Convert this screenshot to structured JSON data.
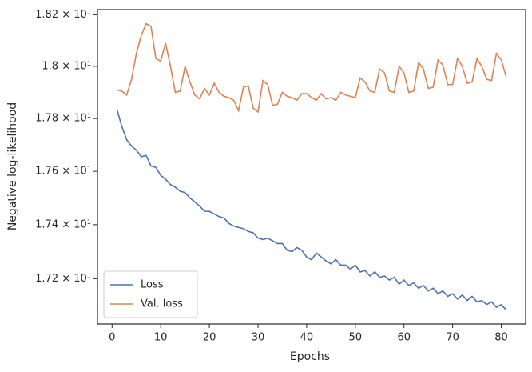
{
  "chart_data": {
    "type": "line",
    "xlabel": "Epochs",
    "ylabel": "Negative log-likelihood",
    "x": [
      1,
      2,
      3,
      4,
      5,
      6,
      7,
      8,
      9,
      10,
      11,
      12,
      13,
      14,
      15,
      16,
      17,
      18,
      19,
      20,
      21,
      22,
      23,
      24,
      25,
      26,
      27,
      28,
      29,
      30,
      31,
      32,
      33,
      34,
      35,
      36,
      37,
      38,
      39,
      40,
      41,
      42,
      43,
      44,
      45,
      46,
      47,
      48,
      49,
      50,
      51,
      52,
      53,
      54,
      55,
      56,
      57,
      58,
      59,
      60,
      61,
      62,
      63,
      64,
      65,
      66,
      67,
      68,
      69,
      70,
      71,
      72,
      73,
      74,
      75,
      76,
      77,
      78,
      79,
      80,
      81
    ],
    "series": [
      {
        "name": "Loss",
        "color": "#4c72b0",
        "values": [
          17.835,
          17.77,
          17.72,
          17.695,
          17.68,
          17.655,
          17.66,
          17.62,
          17.615,
          17.585,
          17.57,
          17.55,
          17.54,
          17.525,
          17.52,
          17.5,
          17.485,
          17.47,
          17.45,
          17.45,
          17.44,
          17.43,
          17.425,
          17.405,
          17.395,
          17.39,
          17.385,
          17.375,
          17.37,
          17.35,
          17.345,
          17.35,
          17.34,
          17.33,
          17.33,
          17.305,
          17.3,
          17.315,
          17.305,
          17.28,
          17.27,
          17.295,
          17.28,
          17.265,
          17.255,
          17.27,
          17.25,
          17.25,
          17.235,
          17.25,
          17.225,
          17.23,
          17.21,
          17.225,
          17.205,
          17.21,
          17.195,
          17.205,
          17.18,
          17.195,
          17.175,
          17.185,
          17.165,
          17.175,
          17.155,
          17.165,
          17.145,
          17.155,
          17.135,
          17.145,
          17.125,
          17.14,
          17.12,
          17.135,
          17.115,
          17.12,
          17.105,
          17.115,
          17.095,
          17.105,
          17.085
        ]
      },
      {
        "name": "Val. loss",
        "color": "#dd8452",
        "values": [
          17.91,
          17.905,
          17.89,
          17.95,
          18.05,
          18.12,
          18.165,
          18.155,
          18.03,
          18.02,
          18.09,
          18.0,
          17.9,
          17.905,
          18.0,
          17.94,
          17.89,
          17.875,
          17.915,
          17.89,
          17.935,
          17.9,
          17.885,
          17.88,
          17.87,
          17.83,
          17.92,
          17.925,
          17.84,
          17.825,
          17.945,
          17.93,
          17.85,
          17.855,
          17.9,
          17.885,
          17.88,
          17.87,
          17.895,
          17.895,
          17.88,
          17.87,
          17.895,
          17.875,
          17.88,
          17.87,
          17.9,
          17.89,
          17.885,
          17.88,
          17.955,
          17.94,
          17.905,
          17.9,
          17.99,
          17.975,
          17.905,
          17.9,
          18.0,
          17.975,
          17.9,
          17.905,
          18.015,
          17.99,
          17.915,
          17.92,
          18.025,
          18.005,
          17.93,
          17.93,
          18.03,
          18.0,
          17.935,
          17.94,
          18.03,
          18.0,
          17.95,
          17.945,
          18.05,
          18.025,
          17.96
        ]
      }
    ],
    "xlim": [
      -3,
      85
    ],
    "xticks": [
      0,
      10,
      20,
      30,
      40,
      50,
      60,
      70,
      80
    ],
    "ylim": [
      17.034,
      18.22
    ],
    "yscale": "log",
    "yticks": [
      {
        "value": 17.2,
        "label": "1.72 × 10¹"
      },
      {
        "value": 17.4,
        "label": "1.74 × 10¹"
      },
      {
        "value": 17.6,
        "label": "1.76 × 10¹"
      },
      {
        "value": 17.8,
        "label": "1.78 × 10¹"
      },
      {
        "value": 18.0,
        "label": "1.8 × 10¹"
      },
      {
        "value": 18.2,
        "label": "1.82 × 10¹"
      }
    ],
    "legend": "lower left"
  }
}
